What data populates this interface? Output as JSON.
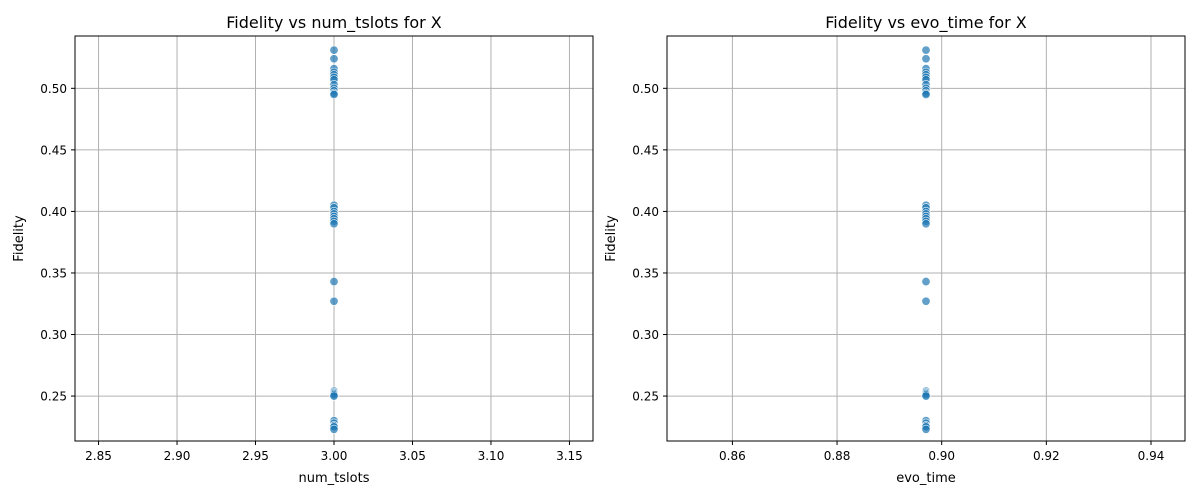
{
  "chart_data": [
    {
      "type": "scatter",
      "title": "Fidelity vs num_tslots for X",
      "xlabel": "num_tslots",
      "ylabel": "Fidelity",
      "xlim": [
        2.835,
        3.165
      ],
      "ylim": [
        0.2135,
        0.5425
      ],
      "xticks": [
        2.85,
        2.9,
        2.95,
        3.0,
        3.05,
        3.1,
        3.15
      ],
      "xtick_labels": [
        "2.85",
        "2.90",
        "2.95",
        "3.00",
        "3.05",
        "3.10",
        "3.15"
      ],
      "yticks": [
        0.25,
        0.3,
        0.35,
        0.4,
        0.45,
        0.5
      ],
      "ytick_labels": [
        "0.25",
        "0.30",
        "0.35",
        "0.40",
        "0.45",
        "0.50"
      ],
      "grid": true,
      "color": "#1f77b4",
      "x": [
        3.0,
        3.0,
        3.0,
        3.0,
        3.0,
        3.0,
        3.0,
        3.0,
        3.0,
        3.0,
        3.0,
        3.0,
        3.0,
        3.0,
        3.0,
        3.0,
        3.0,
        3.0,
        3.0,
        3.0,
        3.0,
        3.0,
        3.0,
        3.0,
        3.0,
        3.0,
        3.0,
        3.0,
        3.0,
        3.0,
        3.0,
        3.0
      ],
      "y": [
        0.531,
        0.524,
        0.516,
        0.513,
        0.511,
        0.509,
        0.507,
        0.503,
        0.5,
        0.498,
        0.496,
        0.495,
        0.405,
        0.403,
        0.4,
        0.398,
        0.396,
        0.394,
        0.392,
        0.39,
        0.343,
        0.327,
        0.254,
        0.253,
        0.252,
        0.251,
        0.25,
        0.23,
        0.228,
        0.226,
        0.225,
        0.223
      ]
    },
    {
      "type": "scatter",
      "title": "Fidelity vs evo_time for X",
      "xlabel": "evo_time",
      "ylabel": "Fidelity",
      "xlim": [
        0.8475,
        0.9465
      ],
      "ylim": [
        0.2135,
        0.5425
      ],
      "xticks": [
        0.86,
        0.88,
        0.9,
        0.92,
        0.94
      ],
      "xtick_labels": [
        "0.86",
        "0.88",
        "0.90",
        "0.92",
        "0.94"
      ],
      "yticks": [
        0.25,
        0.3,
        0.35,
        0.4,
        0.45,
        0.5
      ],
      "ytick_labels": [
        "0.25",
        "0.30",
        "0.35",
        "0.40",
        "0.45",
        "0.50"
      ],
      "grid": true,
      "color": "#1f77b4",
      "x": [
        0.897,
        0.897,
        0.897,
        0.897,
        0.897,
        0.897,
        0.897,
        0.897,
        0.897,
        0.897,
        0.897,
        0.897,
        0.897,
        0.897,
        0.897,
        0.897,
        0.897,
        0.897,
        0.897,
        0.897,
        0.897,
        0.897,
        0.897,
        0.897,
        0.897,
        0.897,
        0.897,
        0.897,
        0.897,
        0.897,
        0.897,
        0.897
      ],
      "y": [
        0.531,
        0.524,
        0.516,
        0.513,
        0.511,
        0.509,
        0.507,
        0.503,
        0.5,
        0.498,
        0.496,
        0.495,
        0.405,
        0.403,
        0.4,
        0.398,
        0.396,
        0.394,
        0.392,
        0.39,
        0.343,
        0.327,
        0.254,
        0.253,
        0.252,
        0.251,
        0.25,
        0.23,
        0.228,
        0.226,
        0.225,
        0.223
      ]
    }
  ]
}
